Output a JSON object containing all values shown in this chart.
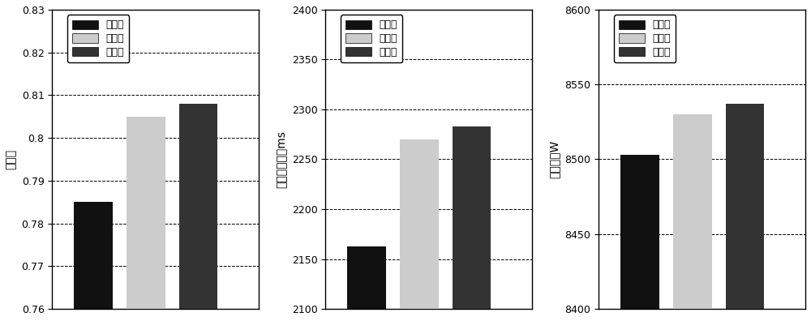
{
  "chart1": {
    "ylabel": "目标値",
    "values": [
      0.785,
      0.805,
      0.808
    ],
    "colors": [
      "#111111",
      "#cccccc",
      "#333333"
    ],
    "ylim": [
      0.76,
      0.83
    ],
    "yticks": [
      0.76,
      0.77,
      0.78,
      0.79,
      0.8,
      0.81,
      0.82,
      0.83
    ]
  },
  "chart2": {
    "ylabel": "总迁移时间／ms",
    "values": [
      2163,
      2270,
      2283
    ],
    "colors": [
      "#111111",
      "#cccccc",
      "#333333"
    ],
    "ylim": [
      2100,
      2400
    ],
    "yticks": [
      2100,
      2150,
      2200,
      2250,
      2300,
      2350,
      2400
    ]
  },
  "chart3": {
    "ylabel": "总功耗／W",
    "values": [
      8503,
      8530,
      8537
    ],
    "colors": [
      "#111111",
      "#cccccc",
      "#333333"
    ],
    "ylim": [
      8400,
      8600
    ],
    "yticks": [
      8400,
      8450,
      8500,
      8550,
      8600
    ]
  },
  "legend_labels": [
    "方案一",
    "方案二",
    "方案三"
  ],
  "legend_colors": [
    "#111111",
    "#cccccc",
    "#333333"
  ],
  "bar_width": 0.28,
  "x_positions": [
    1.0,
    1.38,
    1.76
  ]
}
